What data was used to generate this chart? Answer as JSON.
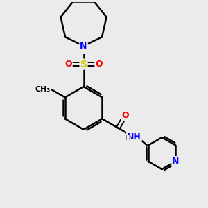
{
  "background_color": "#ebebeb",
  "bond_color": "#000000",
  "atom_colors": {
    "N": "#0000ff",
    "O": "#ff0000",
    "S": "#cccc00",
    "C": "#000000",
    "H": "#777777"
  },
  "figsize": [
    3.0,
    3.0
  ],
  "dpi": 100
}
